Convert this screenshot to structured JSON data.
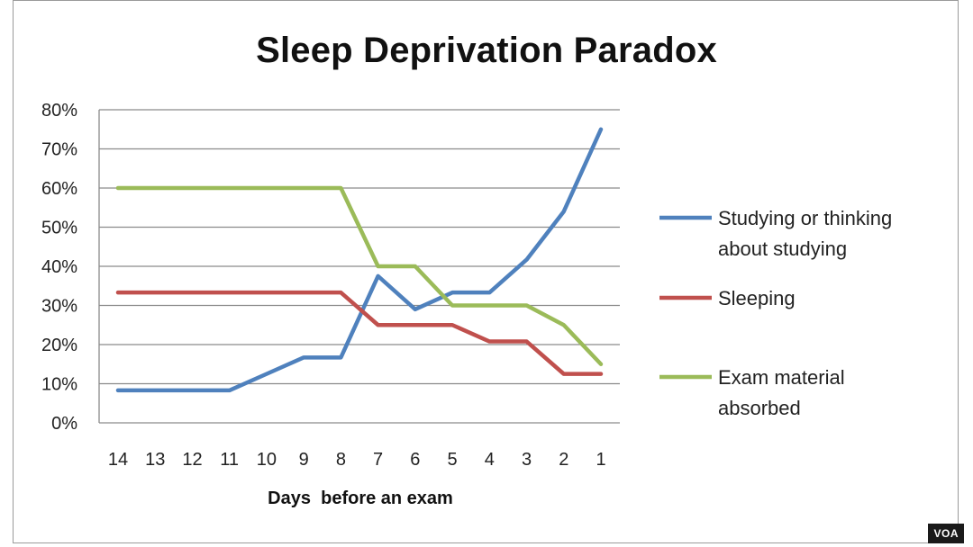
{
  "chart_data": {
    "type": "line",
    "title": "Sleep Deprivation Paradox",
    "xlabel": "Days  before an exam",
    "ylabel": "",
    "categories": [
      "14",
      "13",
      "12",
      "11",
      "10",
      "9",
      "8",
      "7",
      "6",
      "5",
      "4",
      "3",
      "2",
      "1"
    ],
    "yticks": [
      "0%",
      "10%",
      "20%",
      "30%",
      "40%",
      "50%",
      "60%",
      "70%",
      "80%"
    ],
    "ylim": [
      0,
      80
    ],
    "grid": "horizontal",
    "legend_position": "right",
    "series": [
      {
        "name": "Studying or thinking about studying",
        "legend_lines": [
          "Studying or thinking",
          "about studying"
        ],
        "color": "#4F81BD",
        "values": [
          8.3,
          8.3,
          8.3,
          8.3,
          12.5,
          16.7,
          16.7,
          37.5,
          29,
          33.3,
          33.3,
          41.7,
          54,
          75
        ]
      },
      {
        "name": "Sleeping",
        "legend_lines": [
          "Sleeping"
        ],
        "color": "#C0504D",
        "values": [
          33.3,
          33.3,
          33.3,
          33.3,
          33.3,
          33.3,
          33.3,
          25,
          25,
          25,
          20.8,
          20.8,
          12.5,
          12.5
        ]
      },
      {
        "name": "Exam material absorbed",
        "legend_lines": [
          "Exam material",
          "absorbed"
        ],
        "color": "#9BBB59",
        "values": [
          60,
          60,
          60,
          60,
          60,
          60,
          60,
          40,
          40,
          30,
          30,
          30,
          25,
          15
        ]
      }
    ]
  },
  "watermark": "VOA"
}
